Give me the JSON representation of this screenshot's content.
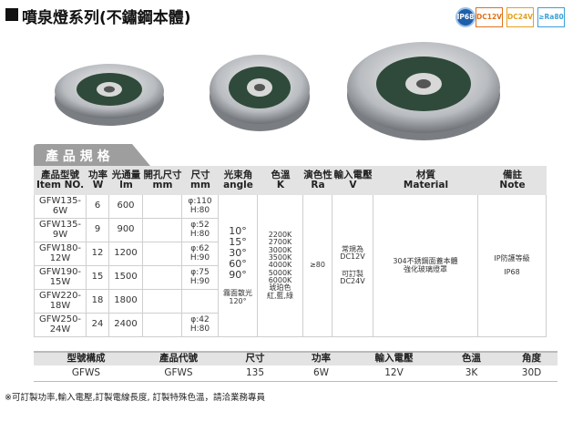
{
  "header": {
    "title": "噴泉燈系列(不鏽鋼本體)",
    "badges": [
      "IP68",
      "DC12V",
      "DC24V",
      "≥Ra80"
    ]
  },
  "section_tab": "產 品 規 格",
  "spec_table": {
    "columns": [
      {
        "zh": "產品型號",
        "en": "Item NO."
      },
      {
        "zh": "功率",
        "en": "W"
      },
      {
        "zh": "光通量",
        "en": "lm"
      },
      {
        "zh": "開孔尺寸",
        "en": "mm"
      },
      {
        "zh": "尺寸",
        "en": "mm"
      },
      {
        "zh": "光束角",
        "en": "angle"
      },
      {
        "zh": "色溫",
        "en": "K"
      },
      {
        "zh": "演色性",
        "en": "Ra"
      },
      {
        "zh": "輸入電壓",
        "en": "V"
      },
      {
        "zh": "材質",
        "en": "Material"
      },
      {
        "zh": "備註",
        "en": "Note"
      }
    ],
    "rows": [
      {
        "item": "GFW135-6W",
        "power": "6",
        "lumen": "600",
        "size": [
          "φ:110",
          "H:80"
        ]
      },
      {
        "item": "GFW135-9W",
        "power": "9",
        "lumen": "900",
        "size": [
          "φ:52",
          "H:80"
        ]
      },
      {
        "item": "GFW180-12W",
        "power": "12",
        "lumen": "1200",
        "size": [
          "φ:62",
          "H:90"
        ]
      },
      {
        "item": "GFW190-15W",
        "power": "15",
        "lumen": "1500",
        "size": [
          "φ:75",
          "H:90"
        ]
      },
      {
        "item": "GFW220-18W",
        "power": "18",
        "lumen": "1800"
      },
      {
        "item": "GFW250-24W",
        "power": "24",
        "lumen": "2400",
        "size": [
          "φ:42",
          "H:80"
        ]
      }
    ],
    "beam_angle": [
      "10°",
      "15°",
      "30°",
      "60°",
      "90°"
    ],
    "beam_angle_frosted": [
      "霧面散光",
      "120°"
    ],
    "color_temp": [
      "2200K",
      "2700K",
      "3000K",
      "3500K",
      "4000K",
      "5000K",
      "6000K",
      "琥珀色",
      "紅,藍,綠"
    ],
    "cri": "≥80",
    "voltage": [
      "常規為",
      "DC12V",
      "可訂製",
      "DC24V"
    ],
    "material": [
      "304不銹鋼面蓋本體",
      "強化玻璃燈罩"
    ],
    "note": [
      "IP防護等級",
      "IP68"
    ]
  },
  "code_table": {
    "headers": [
      "型號構成",
      "產品代號",
      "尺寸",
      "功率",
      "輸入電壓",
      "色溫",
      "角度"
    ],
    "values": [
      "GFWS",
      "GFWS",
      "135",
      "6W",
      "12V",
      "3K",
      "30D"
    ]
  },
  "footnote": "※可訂製功率,輸入電壓,訂製電線長度, 訂製特殊色溫，請洽業務專員"
}
